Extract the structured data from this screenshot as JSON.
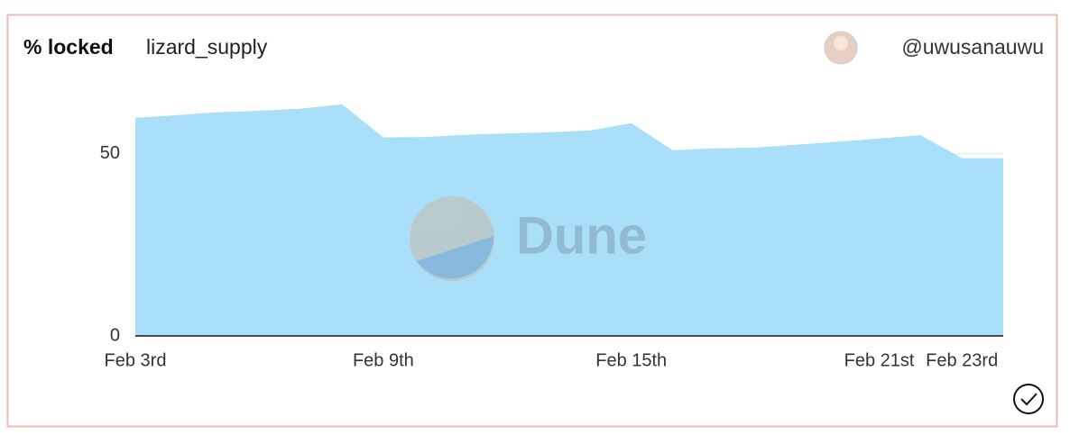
{
  "header": {
    "title": "% locked",
    "query": "lizard_supply",
    "author": "@uwusanauwu"
  },
  "chart_data": {
    "type": "area",
    "watermark": "Dune",
    "categories": [
      "Feb 3rd",
      null,
      null,
      null,
      null,
      null,
      "Feb 9th",
      null,
      null,
      null,
      null,
      null,
      "Feb 15th",
      null,
      null,
      null,
      null,
      null,
      "Feb 21st",
      null,
      "Feb 23rd",
      null
    ],
    "values": [
      59.9,
      60.6,
      61.4,
      61.8,
      62.4,
      63.6,
      54.5,
      54.6,
      55.2,
      55.6,
      55.9,
      56.4,
      58.4,
      51.0,
      51.5,
      51.7,
      52.5,
      53.3,
      54.2,
      55.1,
      48.8,
      48.8
    ],
    "color": "#aadff9",
    "ylim": [
      0,
      67
    ],
    "yticks": [
      0,
      50
    ],
    "grid": true
  }
}
